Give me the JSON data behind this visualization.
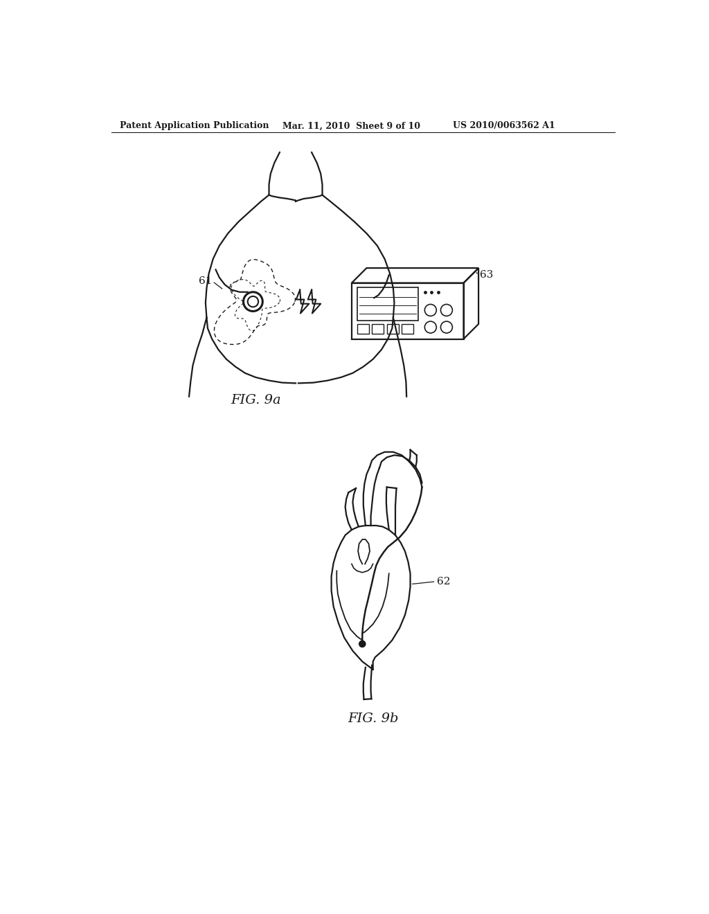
{
  "bg_color": "#ffffff",
  "line_color": "#1a1a1a",
  "header_text_left": "Patent Application Publication",
  "header_text_mid": "Mar. 11, 2010  Sheet 9 of 10",
  "header_text_right": "US 2010/0063562 A1",
  "fig9a_label": "FIG. 9a",
  "fig9b_label": "FIG. 9b",
  "label_61": "61",
  "label_62": "62",
  "label_63": "63"
}
